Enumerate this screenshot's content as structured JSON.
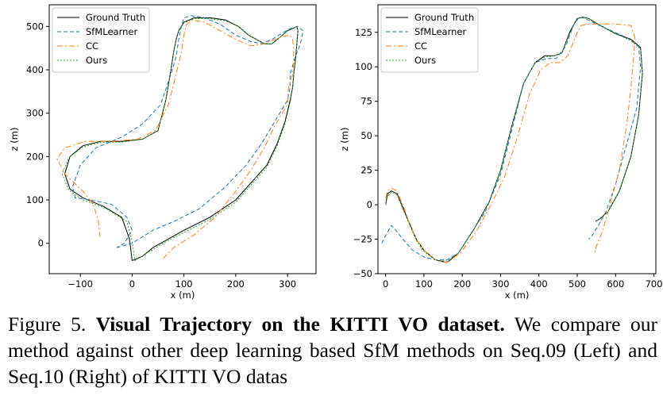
{
  "chart_data": [
    {
      "type": "line",
      "xlabel": "x (m)",
      "ylabel": "z (m)",
      "xlim": [
        -160,
        355
      ],
      "ylim": [
        -70,
        550
      ],
      "xticks": [
        -100,
        0,
        100,
        200,
        300
      ],
      "yticks": [
        0,
        100,
        200,
        300,
        400,
        500
      ],
      "legend": "top-left",
      "series": [
        {
          "name": "Ground Truth",
          "color": "#000000",
          "dash": "",
          "x": [
            0,
            20,
            40,
            70,
            100,
            150,
            200,
            230,
            260,
            280,
            295,
            305,
            310,
            312,
            315,
            318,
            320,
            318,
            310,
            300,
            290,
            280,
            270,
            255,
            240,
            225,
            205,
            180,
            150,
            120,
            100,
            90,
            85,
            80,
            75,
            65,
            50,
            20,
            -20,
            -60,
            -95,
            -120,
            -130,
            -120,
            -95,
            -55,
            -20,
            -5,
            0
          ],
          "z": [
            -40,
            -30,
            -10,
            10,
            30,
            60,
            100,
            140,
            180,
            230,
            280,
            330,
            360,
            390,
            420,
            460,
            490,
            500,
            495,
            490,
            480,
            470,
            460,
            460,
            470,
            480,
            500,
            515,
            520,
            520,
            510,
            490,
            470,
            440,
            400,
            330,
            260,
            240,
            235,
            235,
            225,
            200,
            160,
            125,
            105,
            85,
            60,
            10,
            -40
          ]
        },
        {
          "name": "SfMLearner",
          "color": "#1f77b4",
          "dash": "5,3",
          "x": [
            -30,
            0,
            40,
            80,
            130,
            180,
            220,
            250,
            275,
            290,
            300,
            305,
            305,
            315,
            325,
            330,
            320,
            305,
            290,
            270,
            250,
            230,
            200,
            170,
            140,
            115,
            100,
            95,
            90,
            85,
            75,
            55,
            20,
            -20,
            -70,
            -100,
            -115,
            -110,
            -80,
            -40,
            -10,
            0,
            -15,
            -30
          ],
          "z": [
            -10,
            0,
            30,
            50,
            80,
            130,
            180,
            230,
            280,
            310,
            330,
            360,
            390,
            430,
            460,
            490,
            500,
            495,
            485,
            470,
            460,
            465,
            480,
            505,
            520,
            525,
            520,
            500,
            470,
            430,
            390,
            320,
            275,
            245,
            220,
            180,
            130,
            105,
            100,
            90,
            60,
            30,
            0,
            -10
          ]
        },
        {
          "name": "CC",
          "color": "#ff7f0e",
          "dash": "7,3,2,3",
          "x": [
            60,
            80,
            120,
            160,
            200,
            230,
            255,
            275,
            290,
            300,
            302,
            310,
            312,
            312,
            310,
            305,
            285,
            255,
            230,
            200,
            170,
            140,
            115,
            105,
            100,
            95,
            85,
            70,
            45,
            10,
            -40,
            -90,
            -130,
            -145,
            -130,
            -95,
            -75,
            -65,
            -62
          ],
          "z": [
            -35,
            -10,
            20,
            60,
            120,
            170,
            220,
            270,
            300,
            320,
            360,
            390,
            420,
            450,
            470,
            480,
            475,
            460,
            455,
            470,
            490,
            510,
            515,
            505,
            480,
            440,
            390,
            320,
            260,
            240,
            235,
            235,
            220,
            195,
            160,
            120,
            90,
            50,
            15
          ]
        },
        {
          "name": "Ours",
          "color": "#2ca02c",
          "dash": "2,2",
          "x": [
            5,
            25,
            60,
            100,
            150,
            200,
            230,
            260,
            280,
            295,
            305,
            310,
            312,
            315,
            318,
            320,
            318,
            310,
            300,
            290,
            280,
            270,
            255,
            240,
            225,
            205,
            180,
            150,
            120,
            100,
            90,
            85,
            80,
            75,
            65,
            50,
            20,
            -20,
            -60,
            -95,
            -122,
            -135,
            -122,
            -95,
            -50,
            -10,
            0,
            5
          ],
          "z": [
            -40,
            -25,
            0,
            25,
            55,
            95,
            135,
            175,
            225,
            275,
            325,
            360,
            390,
            420,
            460,
            490,
            500,
            495,
            490,
            480,
            470,
            460,
            460,
            470,
            480,
            500,
            513,
            518,
            518,
            508,
            490,
            470,
            440,
            400,
            330,
            260,
            240,
            233,
            233,
            222,
            198,
            160,
            122,
            100,
            80,
            50,
            5,
            -40
          ]
        }
      ]
    },
    {
      "type": "line",
      "xlabel": "x (m)",
      "ylabel": "z (m)",
      "xlim": [
        -20,
        705
      ],
      "ylim": [
        -50,
        145
      ],
      "xticks": [
        0,
        100,
        200,
        300,
        400,
        500,
        600,
        700
      ],
      "yticks": [
        -50,
        -25,
        0,
        25,
        50,
        75,
        100,
        125
      ],
      "legend": "top-left",
      "series": [
        {
          "name": "Ground Truth",
          "color": "#000000",
          "dash": "",
          "x": [
            0,
            5,
            15,
            30,
            45,
            60,
            80,
            100,
            130,
            160,
            190,
            230,
            270,
            300,
            330,
            360,
            390,
            415,
            440,
            460,
            480,
            500,
            515,
            530,
            560,
            600,
            640,
            665,
            670,
            660,
            640,
            610,
            580,
            560,
            548
          ],
          "z": [
            0,
            8,
            10,
            8,
            -2,
            -12,
            -25,
            -33,
            -40,
            -42,
            -35,
            -18,
            2,
            25,
            58,
            88,
            103,
            108,
            108,
            110,
            125,
            135,
            136,
            135,
            130,
            124,
            120,
            114,
            95,
            65,
            35,
            10,
            -5,
            -10,
            -12
          ]
        },
        {
          "name": "SfMLearner",
          "color": "#1f77b4",
          "dash": "5,3",
          "x": [
            -10,
            -5,
            5,
            15,
            25,
            45,
            70,
            100,
            130,
            160,
            190,
            220,
            260,
            300,
            330,
            360,
            390,
            420,
            445,
            470,
            490,
            505,
            520,
            550,
            590,
            630,
            660,
            665,
            655,
            630,
            600,
            575,
            555,
            540,
            530
          ],
          "z": [
            -28,
            -25,
            -20,
            -15,
            -18,
            -25,
            -33,
            -38,
            -40,
            -40,
            -35,
            -22,
            -5,
            22,
            55,
            88,
            103,
            106,
            106,
            115,
            130,
            136,
            135,
            131,
            126,
            121,
            115,
            100,
            70,
            45,
            15,
            -5,
            -15,
            -22,
            -25
          ]
        },
        {
          "name": "CC",
          "color": "#ff7f0e",
          "dash": "7,3,2,3",
          "x": [
            0,
            5,
            15,
            30,
            45,
            60,
            80,
            100,
            130,
            160,
            195,
            235,
            275,
            310,
            345,
            375,
            405,
            430,
            455,
            475,
            490,
            500,
            510,
            530,
            560,
            600,
            640,
            650,
            648,
            640,
            630,
            610,
            585,
            565,
            550,
            545
          ],
          "z": [
            5,
            10,
            12,
            10,
            0,
            -12,
            -25,
            -33,
            -40,
            -42,
            -35,
            -20,
            0,
            20,
            50,
            80,
            98,
            103,
            103,
            108,
            118,
            125,
            130,
            131,
            131,
            131,
            130,
            122,
            110,
            85,
            60,
            25,
            0,
            -20,
            -30,
            -35
          ]
        },
        {
          "name": "Ours",
          "color": "#2ca02c",
          "dash": "2,2",
          "x": [
            0,
            5,
            15,
            30,
            45,
            60,
            80,
            100,
            130,
            160,
            190,
            230,
            270,
            300,
            330,
            360,
            390,
            415,
            440,
            460,
            480,
            500,
            515,
            530,
            560,
            600,
            640,
            665,
            670,
            660,
            640,
            610,
            580,
            560,
            548
          ],
          "z": [
            0,
            6,
            9,
            7,
            -3,
            -13,
            -26,
            -34,
            -40,
            -41,
            -35,
            -18,
            2,
            25,
            58,
            88,
            103,
            107,
            108,
            110,
            124,
            135,
            136,
            135,
            130,
            124,
            119,
            113,
            95,
            65,
            35,
            10,
            -5,
            -10,
            -12
          ]
        }
      ]
    }
  ],
  "caption": {
    "prefix": "Figure 5. ",
    "bold": "Visual Trajectory on the KITTI VO dataset.",
    "rest": " We compare our method against other deep learning based SfM methods on Seq.09 (Left) and Seq.10 (Right) of KITTI VO datas"
  }
}
